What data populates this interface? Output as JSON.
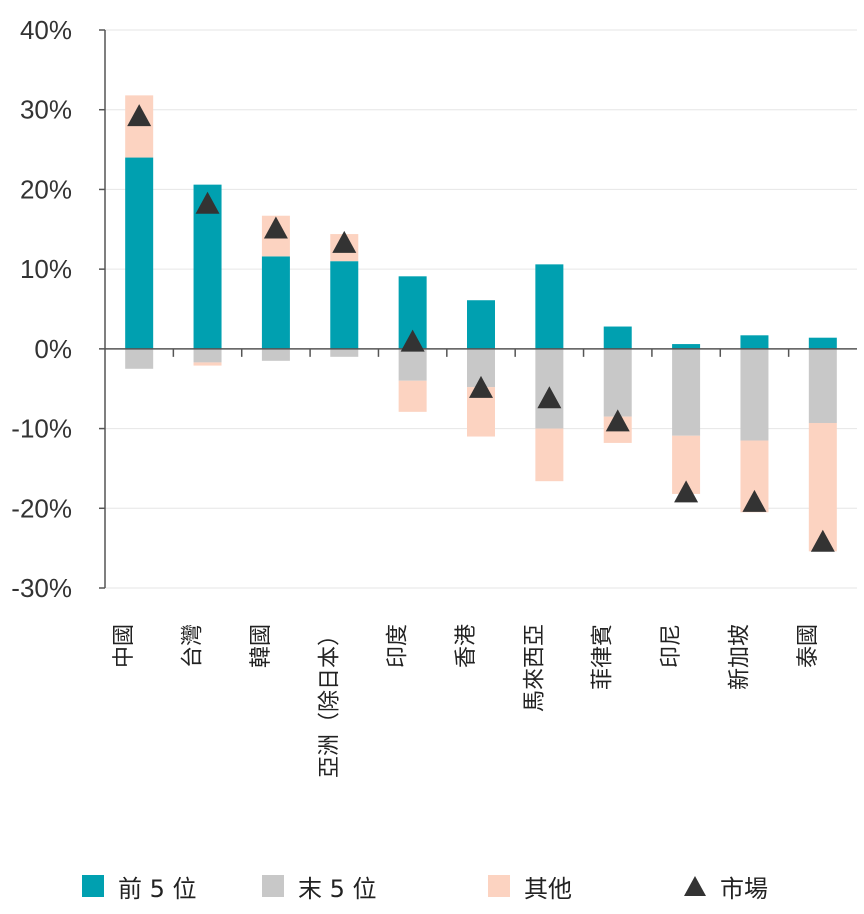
{
  "chart_data": {
    "type": "bar",
    "stacked": true,
    "y_unit": "%",
    "ylim": [
      -30,
      40
    ],
    "y_ticks": [
      "40%",
      "30%",
      "20%",
      "10%",
      "0%",
      "-10%",
      "-20%",
      "-30%"
    ],
    "y_tick_values": [
      40,
      30,
      20,
      10,
      0,
      -10,
      -20,
      -30
    ],
    "grid": true,
    "legend_position": "bottom",
    "categories": [
      "中國",
      "台灣",
      "韓國",
      "亞洲（除日本）",
      "印度",
      "香港",
      "馬來西亞",
      "菲律賓",
      "印尼",
      "新加坡",
      "泰國"
    ],
    "series": [
      {
        "name": "前 5 位",
        "color": "#00a0b0",
        "values": [
          24.0,
          20.6,
          11.6,
          11.0,
          9.1,
          6.1,
          10.6,
          2.8,
          0.6,
          1.7,
          1.4
        ]
      },
      {
        "name": "末 5 位",
        "color": "#c8c8c8",
        "values": [
          -2.5,
          -1.7,
          -1.5,
          -1.0,
          -4.0,
          -4.8,
          -10.0,
          -8.5,
          -10.9,
          -11.5,
          -9.3
        ]
      },
      {
        "name": "其他",
        "color": "#fcd3c1",
        "values": [
          7.8,
          -0.4,
          5.1,
          3.4,
          -3.9,
          -6.2,
          -6.6,
          -3.3,
          -7.3,
          -9.0,
          -16.1
        ],
        "base": "stacked-on-top"
      }
    ],
    "markers": {
      "name": "市場",
      "color": "#333333",
      "values": [
        29.2,
        18.2,
        15.1,
        13.3,
        0.9,
        -4.9,
        -6.2,
        -9.1,
        -18.0,
        -19.2,
        -24.2
      ]
    }
  }
}
